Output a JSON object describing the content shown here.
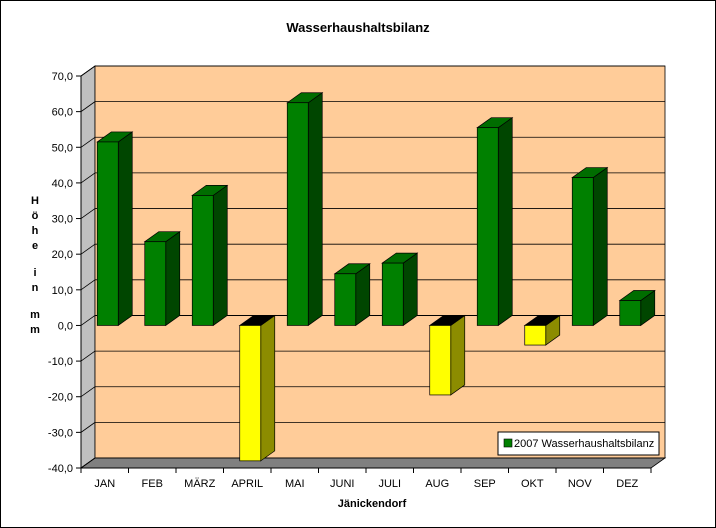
{
  "chart_data": {
    "type": "bar",
    "title": "Wasserhaushaltsbilanz",
    "xlabel": "Jänickendorf",
    "ylabel_chars": [
      "H",
      "ö",
      "h",
      "e",
      "",
      "i",
      "n",
      "",
      "m",
      "m"
    ],
    "categories": [
      "JAN",
      "FEB",
      "MÄRZ",
      "APRIL",
      "MAI",
      "JUNI",
      "JULI",
      "AUG",
      "SEP",
      "OKT",
      "NOV",
      "DEZ"
    ],
    "series": [
      {
        "name": "2007 Wasserhaushaltsbilanz",
        "values": [
          51.5,
          23.5,
          36.5,
          -38.0,
          62.5,
          14.5,
          17.5,
          -19.5,
          55.5,
          -5.5,
          41.5,
          7.0
        ]
      }
    ],
    "ylim": [
      -40,
      70
    ],
    "yticks": [
      -40,
      -30,
      -20,
      -10,
      0,
      10,
      20,
      30,
      40,
      50,
      60,
      70
    ],
    "ytick_labels": [
      "-40,0",
      "-30,0",
      "-20,0",
      "-10,0",
      "0,0",
      "10,0",
      "20,0",
      "30,0",
      "40,0",
      "50,0",
      "60,0",
      "70,0"
    ],
    "grid": true,
    "legend_position": "bottom-right",
    "colors": {
      "positive_bar": "#008000",
      "negative_bar": "#ffff00",
      "plot_background": "#ffcc99",
      "side_wall": "#c0c0c0",
      "floor": "#808080"
    }
  }
}
